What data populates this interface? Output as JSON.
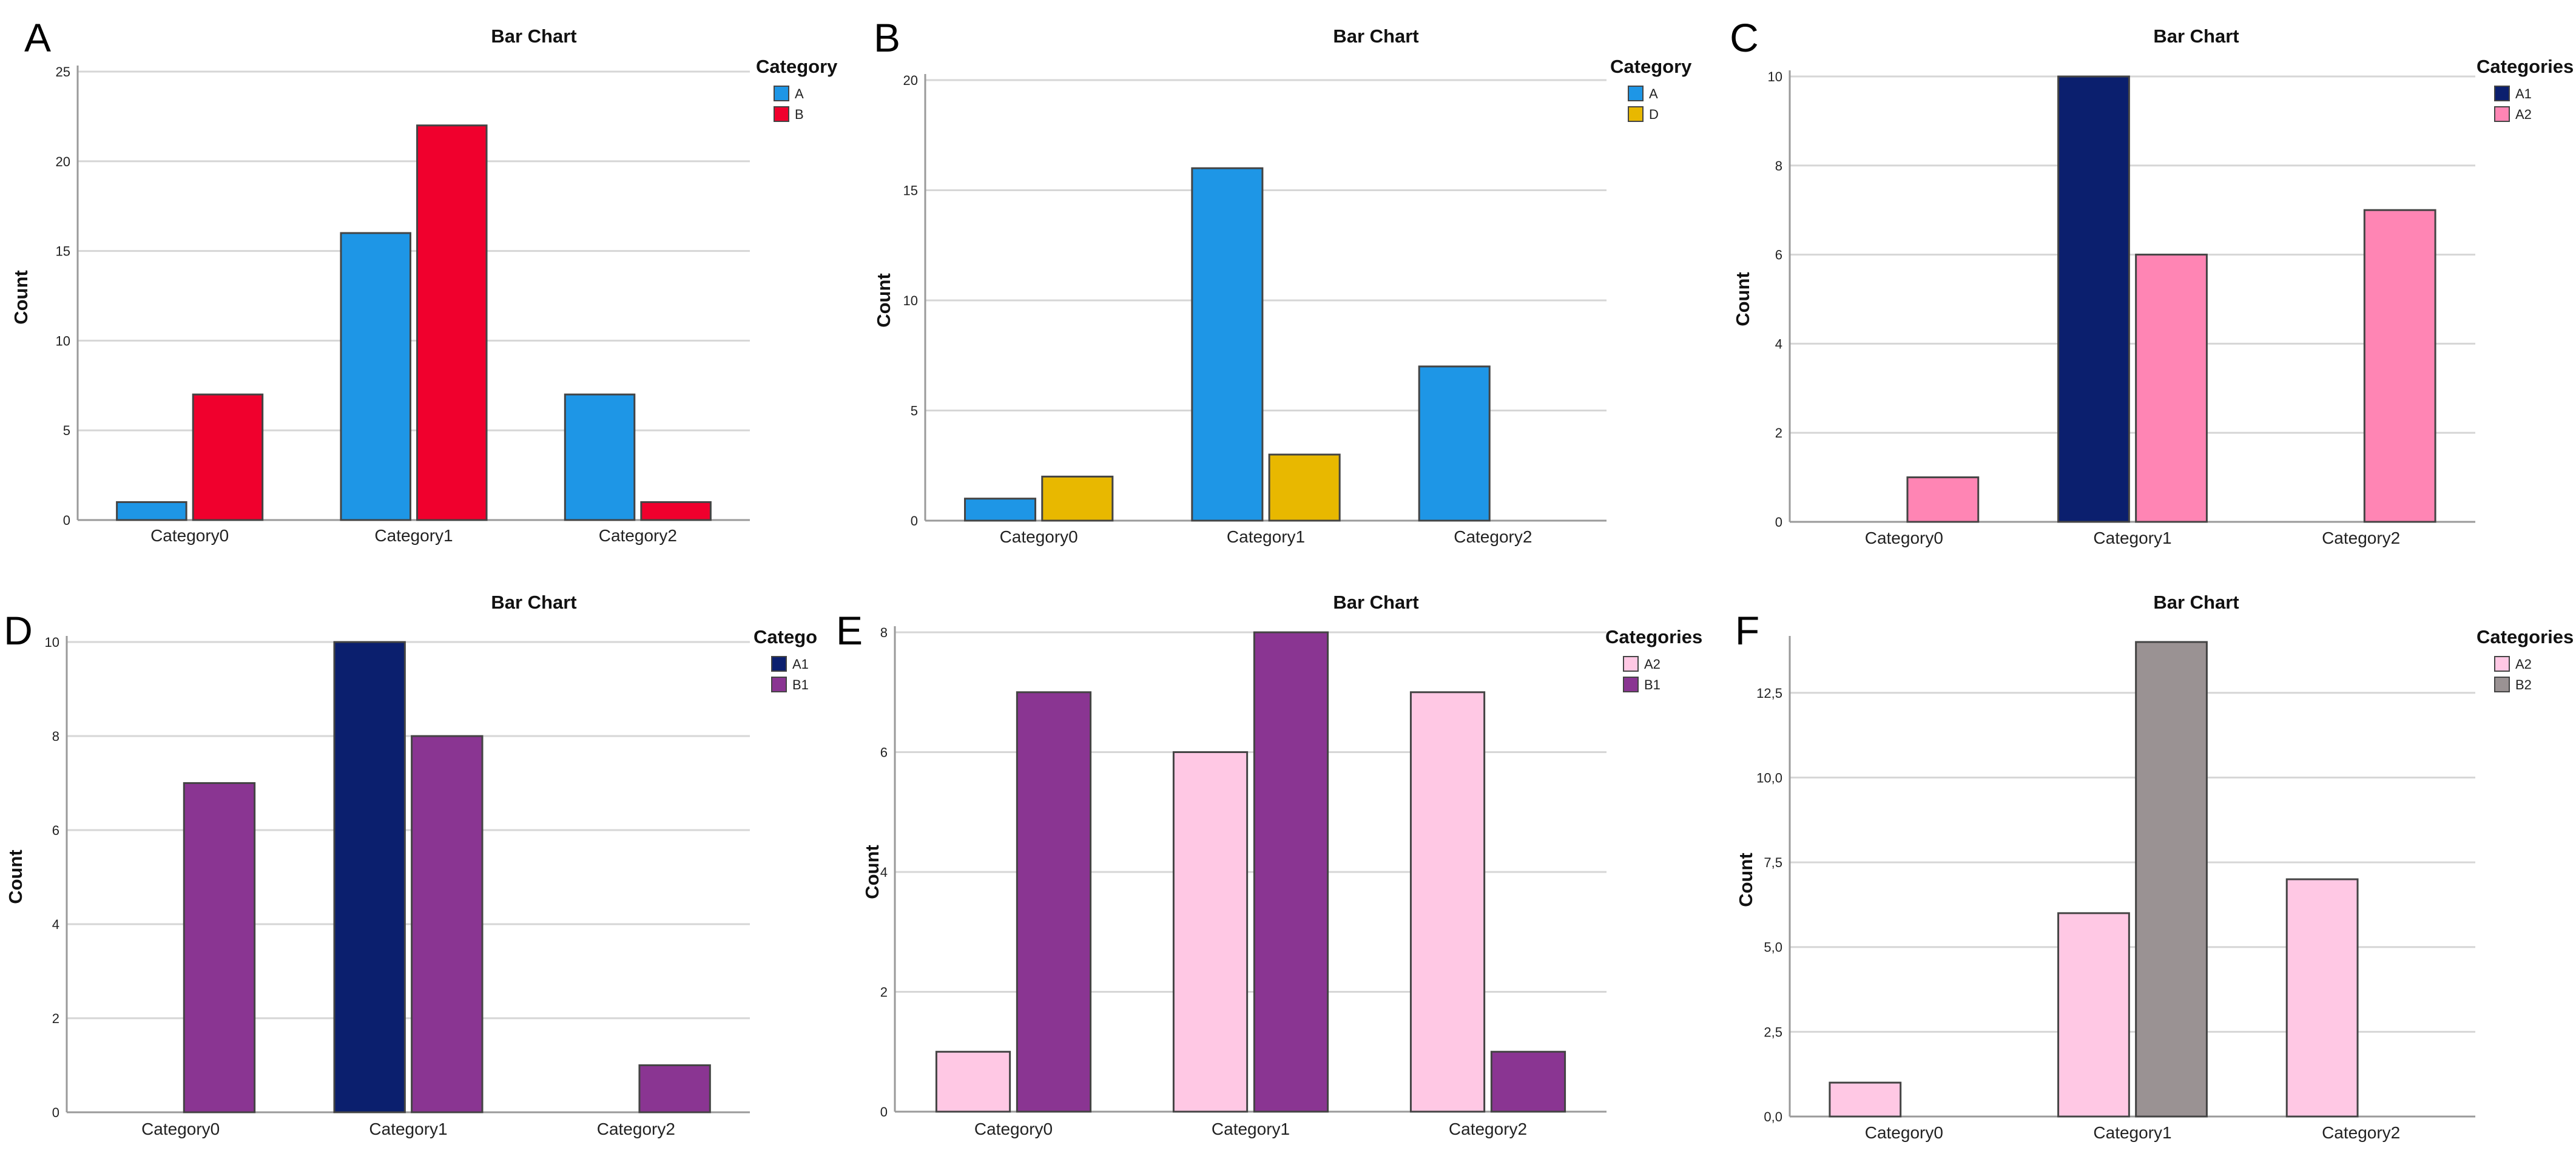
{
  "chart_data": [
    {
      "panel": "A",
      "type": "bar",
      "title": "Bar Chart",
      "xlabel": "",
      "ylabel": "Count",
      "ylim": [
        0,
        25
      ],
      "yticks": [
        "0",
        "5",
        "10",
        "15",
        "20",
        "25"
      ],
      "ytick_values": [
        0,
        5,
        10,
        15,
        20,
        25
      ],
      "grid": true,
      "categories": [
        "Category0",
        "Category1",
        "Category2"
      ],
      "legend_title": "Category",
      "legend_position": "top-right",
      "series": [
        {
          "name": "A",
          "color": "#1e96e6",
          "values": [
            1,
            16,
            7
          ]
        },
        {
          "name": "B",
          "color": "#f0002d",
          "values": [
            7,
            22,
            1
          ]
        }
      ]
    },
    {
      "panel": "B",
      "type": "bar",
      "title": "Bar Chart",
      "xlabel": "",
      "ylabel": "Count",
      "ylim": [
        0,
        20
      ],
      "yticks": [
        "0",
        "5",
        "10",
        "15",
        "20"
      ],
      "ytick_values": [
        0,
        5,
        10,
        15,
        20
      ],
      "grid": true,
      "categories": [
        "Category0",
        "Category1",
        "Category2"
      ],
      "legend_title": "Category",
      "legend_position": "top-right",
      "series": [
        {
          "name": "A",
          "color": "#1e96e6",
          "values": [
            1,
            16,
            7
          ]
        },
        {
          "name": "D",
          "color": "#e8b800",
          "values": [
            2,
            3,
            0
          ]
        }
      ]
    },
    {
      "panel": "C",
      "type": "bar",
      "title": "Bar Chart",
      "xlabel": "",
      "ylabel": "Count",
      "ylim": [
        0,
        10
      ],
      "yticks": [
        "0",
        "2",
        "4",
        "6",
        "8",
        "10"
      ],
      "ytick_values": [
        0,
        2,
        4,
        6,
        8,
        10
      ],
      "grid": true,
      "categories": [
        "Category0",
        "Category1",
        "Category2"
      ],
      "legend_title": "Categories",
      "legend_position": "top-right",
      "series": [
        {
          "name": "A1",
          "color": "#0b1f6e",
          "values": [
            0,
            10,
            0
          ]
        },
        {
          "name": "A2",
          "color": "#ff85b4",
          "values": [
            1,
            6,
            7
          ]
        }
      ]
    },
    {
      "panel": "D",
      "type": "bar",
      "title": "Bar Chart",
      "xlabel": "",
      "ylabel": "Count",
      "ylim": [
        0,
        10
      ],
      "yticks": [
        "0",
        "2",
        "4",
        "6",
        "8",
        "10"
      ],
      "ytick_values": [
        0,
        2,
        4,
        6,
        8,
        10
      ],
      "grid": true,
      "categories": [
        "Category0",
        "Category1",
        "Category2"
      ],
      "legend_title": "Catego",
      "legend_position": "top-right",
      "series": [
        {
          "name": "A1",
          "color": "#0b1f6e",
          "values": [
            0,
            10,
            0
          ]
        },
        {
          "name": "B1",
          "color": "#8a3592",
          "values": [
            7,
            8,
            1
          ]
        }
      ]
    },
    {
      "panel": "E",
      "type": "bar",
      "title": "Bar Chart",
      "xlabel": "",
      "ylabel": "Count",
      "ylim": [
        0,
        8
      ],
      "yticks": [
        "0",
        "2",
        "4",
        "6",
        "8"
      ],
      "ytick_values": [
        0,
        2,
        4,
        6,
        8
      ],
      "grid": true,
      "categories": [
        "Category0",
        "Category1",
        "Category2"
      ],
      "legend_title": "Categories",
      "legend_position": "top-right",
      "series": [
        {
          "name": "A2",
          "color": "#ffc8e4",
          "values": [
            1,
            6,
            7
          ]
        },
        {
          "name": "B1",
          "color": "#8a3592",
          "values": [
            7,
            8,
            1
          ]
        }
      ]
    },
    {
      "panel": "F",
      "type": "bar",
      "title": "Bar Chart",
      "xlabel": "",
      "ylabel": "Count",
      "ylim": [
        0,
        14
      ],
      "yticks": [
        "0,0",
        "2,5",
        "5,0",
        "7,5",
        "10,0",
        "12,5"
      ],
      "ytick_values": [
        0,
        2.5,
        5,
        7.5,
        10,
        12.5
      ],
      "grid": true,
      "categories": [
        "Category0",
        "Category1",
        "Category2"
      ],
      "legend_title": "Categories",
      "legend_position": "top-right",
      "series": [
        {
          "name": "A2",
          "color": "#ffc8e4",
          "values": [
            1,
            6,
            7
          ]
        },
        {
          "name": "B2",
          "color": "#9a9293",
          "values": [
            0,
            14,
            0
          ]
        }
      ]
    }
  ]
}
